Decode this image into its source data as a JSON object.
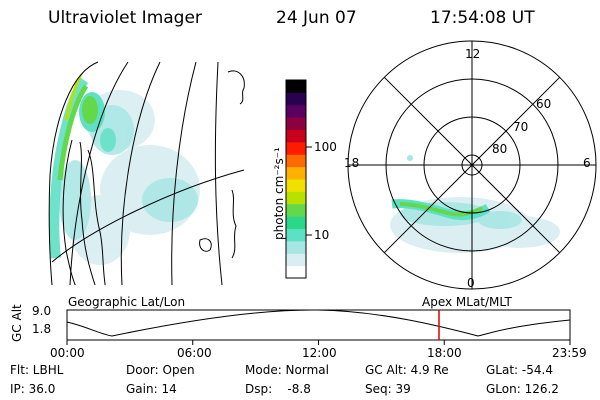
{
  "header": {
    "title": "Ultraviolet Imager",
    "date": "24 Jun 07",
    "time": "17:54:08 UT"
  },
  "colorbar": {
    "unit_label": "photon cm⁻²s⁻¹",
    "ticks": [
      "100",
      "10"
    ],
    "colors": [
      "#ffffff",
      "#d8eef2",
      "#a8e6e4",
      "#5ee0c4",
      "#2bd88a",
      "#63d84a",
      "#b8e000",
      "#f0e000",
      "#ffb000",
      "#ff6a00",
      "#ff1a00",
      "#c8001e",
      "#8c0040",
      "#5a0060",
      "#2a0050",
      "#000000"
    ]
  },
  "polar": {
    "lat_labels": [
      "60",
      "70",
      "80"
    ],
    "mlt_labels": {
      "top": "12",
      "left": "18",
      "right": "6",
      "bottom": "0"
    }
  },
  "timeline": {
    "left_title": "Geographic Lat/Lon",
    "right_title": "Apex MLat/MLT",
    "y_label": "GC Alt",
    "y_ticks": [
      "9.0",
      "1.8"
    ],
    "x_ticks": [
      "00:00",
      "06:00",
      "12:00",
      "18:00",
      "23:59"
    ],
    "marker_color": "#e00000"
  },
  "info": {
    "filter": "Flt: LBHL",
    "ip": "IP: 36.0",
    "door": "Door: Open",
    "gain": "Gain: 14",
    "mode": "Mode: Normal",
    "dsp": "Dsp:    -8.8",
    "gc_alt": "GC Alt: 4.9 Re",
    "seq": "Seq: 39",
    "glat": "GLat: -54.4",
    "glon": "GLon: 126.2"
  }
}
